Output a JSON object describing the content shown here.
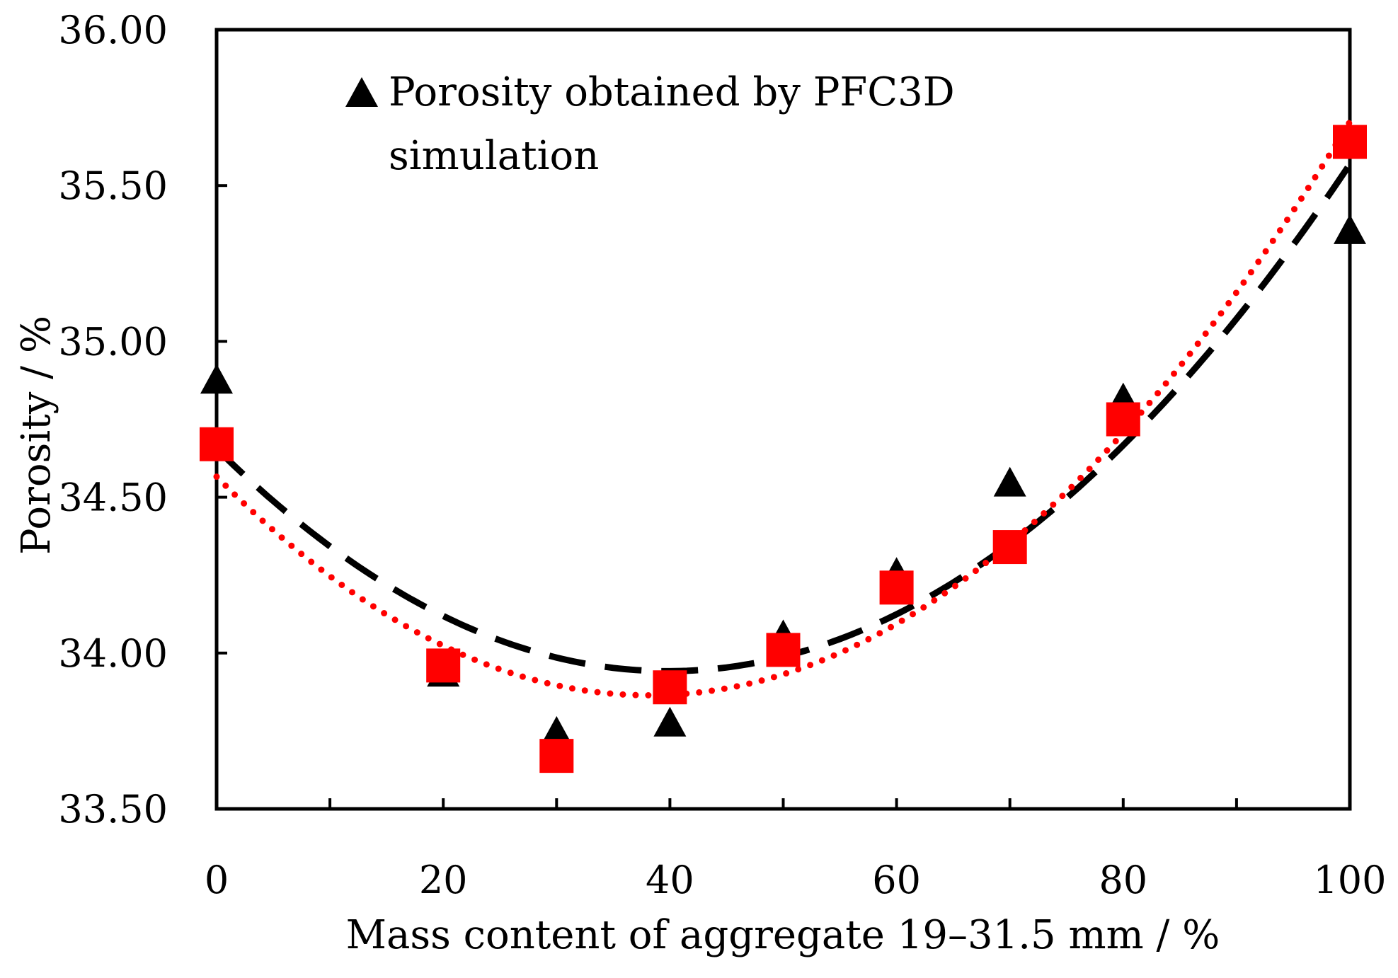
{
  "chart_data": {
    "type": "scatter",
    "title": "",
    "xlabel": "Mass content of aggregate 19–31.5 mm / %",
    "ylabel": "Porosity / %",
    "xlim": [
      0,
      100
    ],
    "ylim": [
      33.5,
      36.0
    ],
    "xticks": [
      0,
      20,
      40,
      60,
      80,
      100
    ],
    "xtick_labels": [
      "0",
      "20",
      "40",
      "60",
      "80",
      "100"
    ],
    "x_minor_ticks": [
      10,
      20,
      30,
      40,
      50,
      60,
      70,
      80,
      90
    ],
    "yticks": [
      33.5,
      34.0,
      34.5,
      35.0,
      35.5,
      36.0
    ],
    "ytick_labels": [
      "33.50",
      "34.00",
      "34.50",
      "35.00",
      "35.50",
      "36.00"
    ],
    "grid": false,
    "x": [
      0,
      20,
      30,
      40,
      50,
      60,
      70,
      80,
      100
    ],
    "series": [
      {
        "color": "#000000",
        "legend_lines": [
          "Porosity obtained by PFC3D",
          "simulation"
        ],
        "values": [
          34.88,
          33.94,
          33.75,
          33.78,
          34.06,
          34.26,
          34.55,
          34.82,
          35.36
        ]
      },
      {
        "color": "#ff0000",
        "values": [
          34.67,
          33.96,
          33.67,
          33.89,
          34.01,
          34.21,
          34.34,
          34.75,
          35.64
        ]
      }
    ]
  }
}
